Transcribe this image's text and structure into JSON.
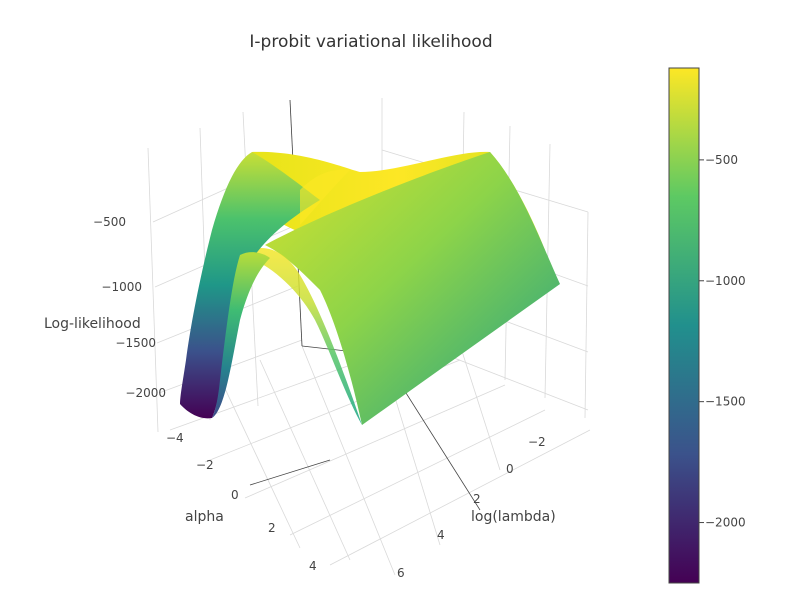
{
  "chart_data": {
    "type": "surface",
    "title": "I-probit variational likelihood",
    "x_axis": {
      "label": "alpha",
      "ticks": [
        "−4",
        "−2",
        "0",
        "2",
        "4",
        "6"
      ],
      "range": [
        -5,
        6.5
      ]
    },
    "y_axis": {
      "label": "log(lambda)",
      "ticks": [
        "−2",
        "0",
        "2",
        "4",
        "6"
      ],
      "range": [
        -3,
        6.5
      ]
    },
    "z_axis": {
      "label": "Log-likelihood",
      "ticks": [
        "−500",
        "−1000",
        "−1500",
        "−2000"
      ],
      "range": [
        -2250,
        -150
      ]
    },
    "colorscale": "viridis",
    "colorscale_stops": [
      "#440154",
      "#3b528b",
      "#21908d",
      "#5dc963",
      "#fde725"
    ],
    "colorbar": {
      "ticks": [
        "−500",
        "−1000",
        "−1500",
        "−2000"
      ],
      "tick_values": [
        -500,
        -1000,
        -1500,
        -2000
      ],
      "range": [
        -2250,
        -120
      ]
    },
    "surface_samples": [
      {
        "alpha": -4.5,
        "log_lambda": -2.5,
        "loglik": -2200
      },
      {
        "alpha": -3.5,
        "log_lambda": -2.5,
        "loglik": -900
      },
      {
        "alpha": -2,
        "log_lambda": -2.5,
        "loglik": -300
      },
      {
        "alpha": 0,
        "log_lambda": -2,
        "loglik": -150
      },
      {
        "alpha": 2,
        "log_lambda": 0,
        "loglik": -200
      },
      {
        "alpha": 4.5,
        "log_lambda": 4,
        "loglik": -700
      },
      {
        "alpha": 6,
        "log_lambda": 6,
        "loglik": -1000
      },
      {
        "alpha": -3.5,
        "log_lambda": 6,
        "loglik": -1100
      }
    ]
  }
}
